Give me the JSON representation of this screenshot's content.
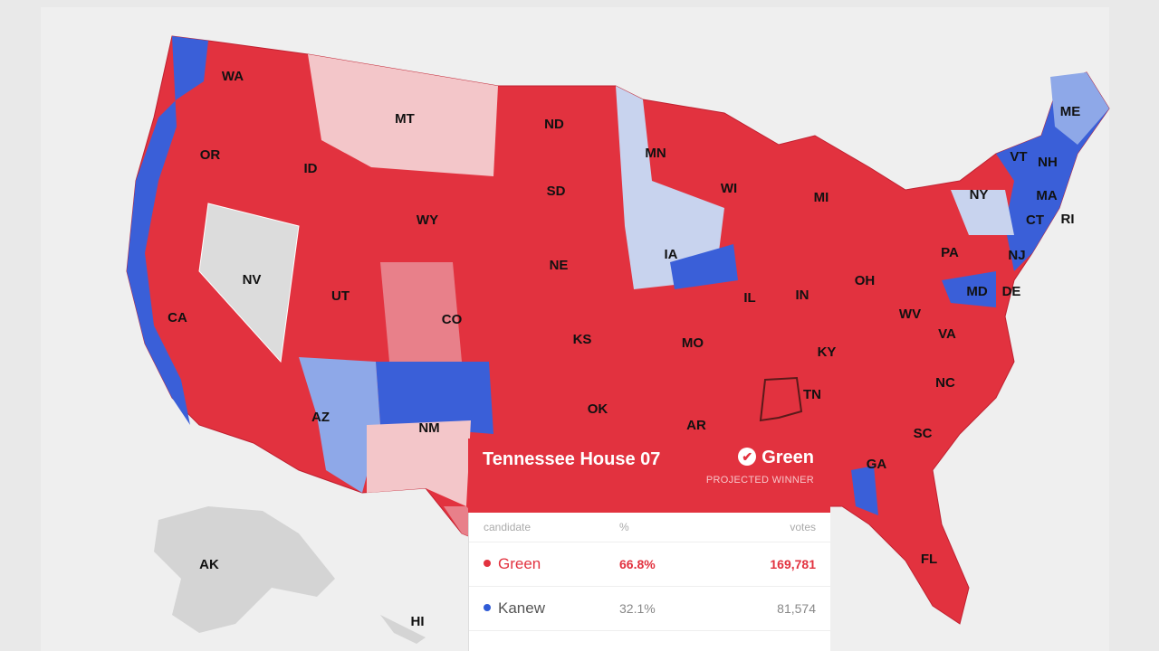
{
  "map": {
    "labels": [
      "WA",
      "OR",
      "CA",
      "NV",
      "ID",
      "MT",
      "ND",
      "SD",
      "WY",
      "UT",
      "CO",
      "NE",
      "KS",
      "OK",
      "NM",
      "AZ",
      "MN",
      "IA",
      "WI",
      "MI",
      "IL",
      "IN",
      "OH",
      "MO",
      "AR",
      "TN",
      "KY",
      "WV",
      "PA",
      "NY",
      "VT",
      "NH",
      "ME",
      "MA",
      "CT",
      "RI",
      "NJ",
      "MD",
      "DE",
      "VA",
      "NC",
      "SC",
      "GA",
      "FL",
      "AK",
      "HI"
    ]
  },
  "tooltip": {
    "title": "Tennessee House 07",
    "winner": "Green",
    "status": "PROJECTED WINNER",
    "table": {
      "header": [
        "candidate",
        "%",
        "votes"
      ],
      "rows": [
        [
          "Green",
          "66.8%",
          "169,781"
        ],
        [
          "Kanew",
          "32.1%",
          "81,574"
        ]
      ]
    }
  }
}
